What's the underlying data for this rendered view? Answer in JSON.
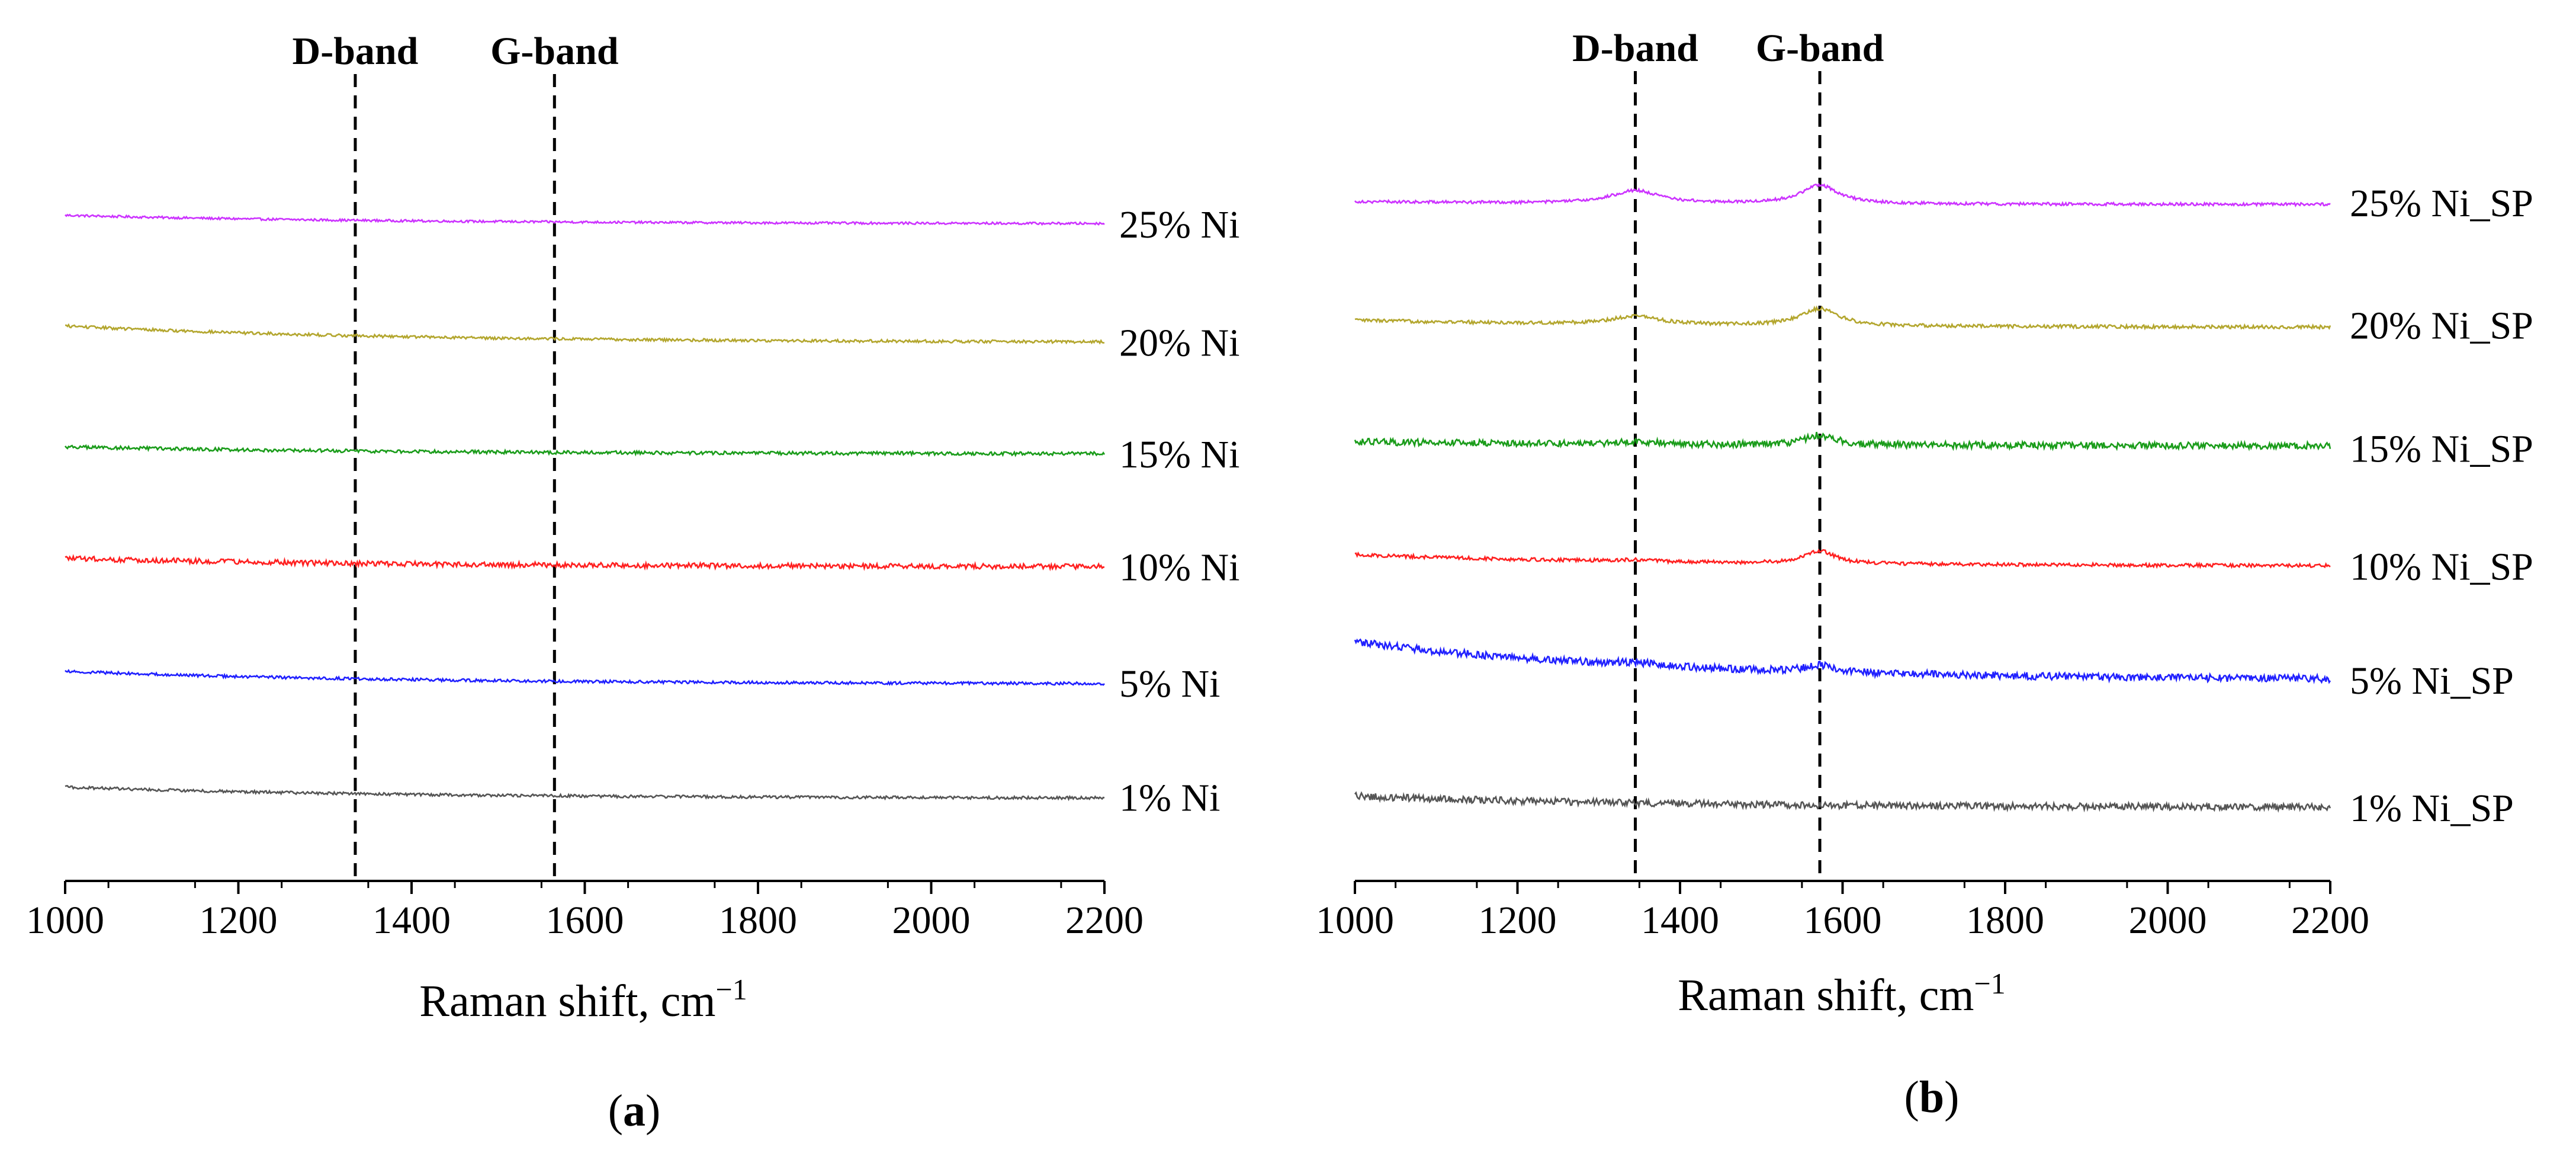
{
  "figure": {
    "panel_a_label": "a",
    "panel_b_label": "b"
  },
  "chart_data": [
    {
      "type": "line",
      "panel": "a",
      "xlabel": "Raman shift, cm",
      "xlabel_superscript": "−1",
      "ylabel": "",
      "xlim": [
        1000,
        2200
      ],
      "xticks": [
        1000,
        1200,
        1400,
        1600,
        1800,
        2000,
        2200
      ],
      "y_axis_visible": false,
      "stacked_offset": true,
      "reference_lines": [
        {
          "label": "D-band",
          "x": 1335,
          "style": "dashed"
        },
        {
          "label": "G-band",
          "x": 1565,
          "style": "dashed"
        }
      ],
      "series": [
        {
          "name": "25% Ni",
          "color": "#cc33ff",
          "offset": 5,
          "start": 0.45,
          "end": 0.15,
          "peaks": [],
          "noise": 0.04
        },
        {
          "name": "20% Ni",
          "color": "#b3a62e",
          "offset": 4,
          "start": 0.58,
          "end": 0.0,
          "peaks": [],
          "noise": 0.05
        },
        {
          "name": "15% Ni",
          "color": "#1a9c1a",
          "offset": 3,
          "start": 0.35,
          "end": 0.1,
          "peaks": [],
          "noise": 0.06
        },
        {
          "name": "10% Ni",
          "color": "#ff2020",
          "offset": 2,
          "start": 0.45,
          "end": 0.15,
          "peaks": [],
          "noise": 0.09
        },
        {
          "name": "5% Ni",
          "color": "#2020ff",
          "offset": 1,
          "start": 0.5,
          "end": 0.05,
          "peaks": [],
          "noise": 0.05
        },
        {
          "name": "1% Ni",
          "color": "#555555",
          "offset": 0,
          "start": 0.45,
          "end": 0.05,
          "peaks": [],
          "noise": 0.05
        }
      ]
    },
    {
      "type": "line",
      "panel": "b",
      "xlabel": "Raman shift, cm",
      "xlabel_superscript": "−1",
      "ylabel": "",
      "xlim": [
        1000,
        2200
      ],
      "xticks": [
        1000,
        1200,
        1400,
        1600,
        1800,
        2000,
        2200
      ],
      "y_axis_visible": false,
      "stacked_offset": true,
      "reference_lines": [
        {
          "label": "D-band",
          "x": 1345,
          "style": "dashed"
        },
        {
          "label": "G-band",
          "x": 1572,
          "style": "dashed"
        }
      ],
      "series": [
        {
          "name": "25% Ni_SP",
          "color": "#cc33ff",
          "offset": 5,
          "start": 0.2,
          "end": 0.1,
          "peaks": [
            {
              "x": 1345,
              "h": 0.45,
              "w": 35
            },
            {
              "x": 1572,
              "h": 0.65,
              "w": 28
            }
          ],
          "noise": 0.05
        },
        {
          "name": "20% Ni_SP",
          "color": "#b3a62e",
          "offset": 4,
          "start": 0.3,
          "end": 0.05,
          "peaks": [
            {
              "x": 1345,
              "h": 0.3,
              "w": 35
            },
            {
              "x": 1572,
              "h": 0.6,
              "w": 28
            }
          ],
          "noise": 0.06
        },
        {
          "name": "15% Ni_SP",
          "color": "#1a9c1a",
          "offset": 3,
          "start": 0.3,
          "end": 0.15,
          "peaks": [
            {
              "x": 1345,
              "h": 0.1,
              "w": 30
            },
            {
              "x": 1572,
              "h": 0.35,
              "w": 22
            }
          ],
          "noise": 0.12
        },
        {
          "name": "10% Ni_SP",
          "color": "#ff2020",
          "offset": 2,
          "start": 0.6,
          "end": 0.2,
          "peaks": [
            {
              "x": 1345,
              "h": 0.06,
              "w": 30
            },
            {
              "x": 1572,
              "h": 0.45,
              "w": 22
            }
          ],
          "noise": 0.06
        },
        {
          "name": "5% Ni_SP",
          "color": "#2020ff",
          "offset": 1,
          "start": 1.8,
          "end": 0.45,
          "peaks": [
            {
              "x": 1345,
              "h": 0.1,
              "w": 30
            },
            {
              "x": 1572,
              "h": 0.25,
              "w": 22
            }
          ],
          "noise": 0.13
        },
        {
          "name": "1% Ni_SP",
          "color": "#555555",
          "offset": 0,
          "start": 0.65,
          "end": 0.25,
          "peaks": [],
          "noise": 0.12
        }
      ]
    }
  ]
}
